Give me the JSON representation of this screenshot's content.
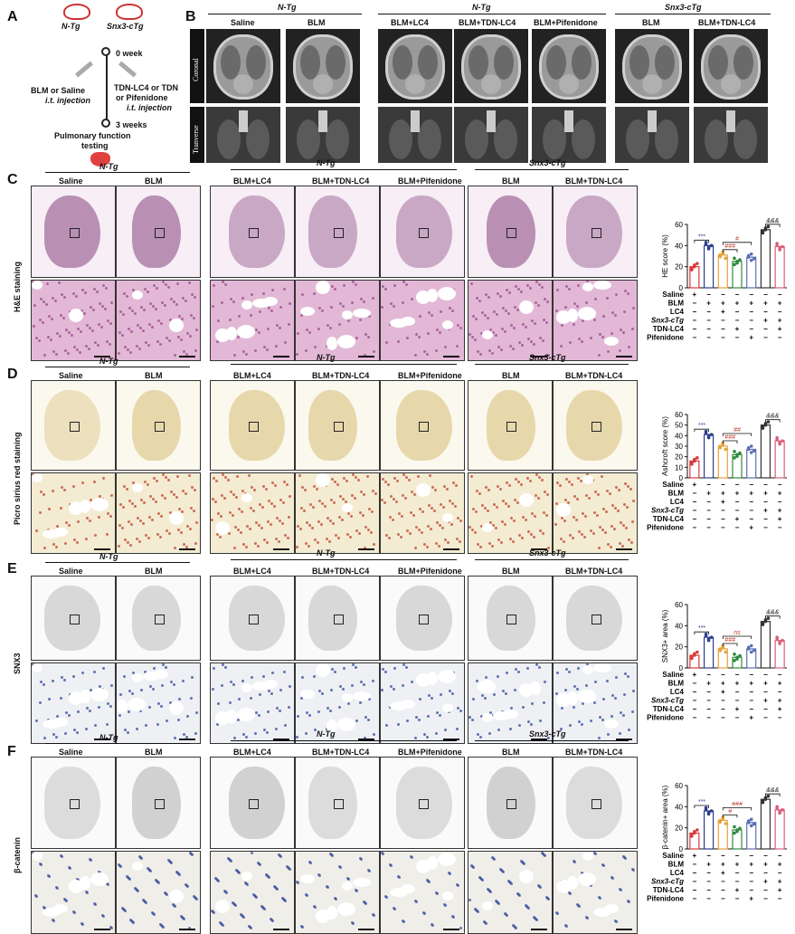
{
  "panels": {
    "A": "A",
    "B": "B",
    "C": "C",
    "D": "D",
    "E": "E",
    "F": "F"
  },
  "schematic": {
    "ntg": "N-Tg",
    "snx": "Snx3-cTg",
    "week0": "0 week",
    "week3": "3 weeks",
    "left_treat_l1": "BLM or Saline",
    "left_treat_l2": "i.t. injection",
    "right_treat_l1": "TDN-LC4 or TDN",
    "right_treat_l2": "or Pifenidone",
    "right_treat_l3": "i.t. injection",
    "pft_l1": "Pulmonary function",
    "pft_l2": "testing"
  },
  "groups": {
    "ntg": "N-Tg",
    "snx": "Snx3-cTg"
  },
  "conditions": [
    "Saline",
    "BLM",
    "BLM+LC4",
    "BLM+TDN-LC4",
    "BLM+Pifenidone",
    "BLM",
    "BLM+TDN-LC4"
  ],
  "ct_rows": {
    "coronal": "Coronal",
    "transverse": "Tranverse"
  },
  "row_labels": {
    "C": "H&E staining",
    "D": "Picro sirius red staining",
    "E": "SNX3",
    "F": "β-catenin"
  },
  "treat_rows": [
    "Saline",
    "BLM",
    "LC4",
    "Snx3-cTg",
    "TDN-LC4",
    "Pifenidone"
  ],
  "treat_signs": [
    [
      "+",
      "−",
      "−",
      "−",
      "−",
      "−",
      "−"
    ],
    [
      "−",
      "+",
      "+",
      "+",
      "+",
      "+",
      "+"
    ],
    [
      "−",
      "−",
      "+",
      "−",
      "−",
      "−",
      "−"
    ],
    [
      "−",
      "−",
      "−",
      "−",
      "−",
      "+",
      "+"
    ],
    [
      "−",
      "−",
      "−",
      "+",
      "−",
      "−",
      "+"
    ],
    [
      "−",
      "−",
      "−",
      "−",
      "+",
      "−",
      "−"
    ]
  ],
  "chart_data": [
    {
      "type": "bar",
      "panel": "C",
      "ylabel": "HE score (%)",
      "ylim": [
        0,
        60
      ],
      "yticks": [
        0,
        20,
        40,
        60
      ],
      "values": [
        20,
        40,
        31,
        25,
        29,
        55,
        39
      ],
      "annotations": [
        "***",
        "###",
        "#",
        "&&&"
      ]
    },
    {
      "type": "bar",
      "panel": "D",
      "ylabel": "Ashcroft score (%)",
      "ylim": [
        0,
        60
      ],
      "yticks": [
        0,
        10,
        20,
        30,
        40,
        50,
        60
      ],
      "values": [
        16,
        41,
        30,
        22,
        27,
        50,
        35
      ],
      "annotations": [
        "***",
        "###",
        "##",
        "&&&"
      ]
    },
    {
      "type": "bar",
      "panel": "E",
      "ylabel": "SNX3+ area (%)",
      "ylim": [
        0,
        60
      ],
      "yticks": [
        0,
        20,
        40,
        60
      ],
      "values": [
        12,
        29,
        18,
        10,
        18,
        44,
        26
      ],
      "annotations": [
        "***",
        "###",
        "ns",
        "&&&"
      ]
    },
    {
      "type": "bar",
      "panel": "F",
      "ylabel": "β-catenin+ area (%)",
      "ylim": [
        0,
        60
      ],
      "yticks": [
        0,
        20,
        40,
        60
      ],
      "values": [
        15,
        36,
        27,
        18,
        25,
        47,
        37
      ],
      "annotations": [
        "***",
        "#",
        "###",
        "&&&"
      ]
    }
  ],
  "bar_colors": [
    "#d93a3a",
    "#2b3f8f",
    "#e6a23c",
    "#2e8b3e",
    "#5b6fb5",
    "#333333",
    "#d9607a"
  ]
}
